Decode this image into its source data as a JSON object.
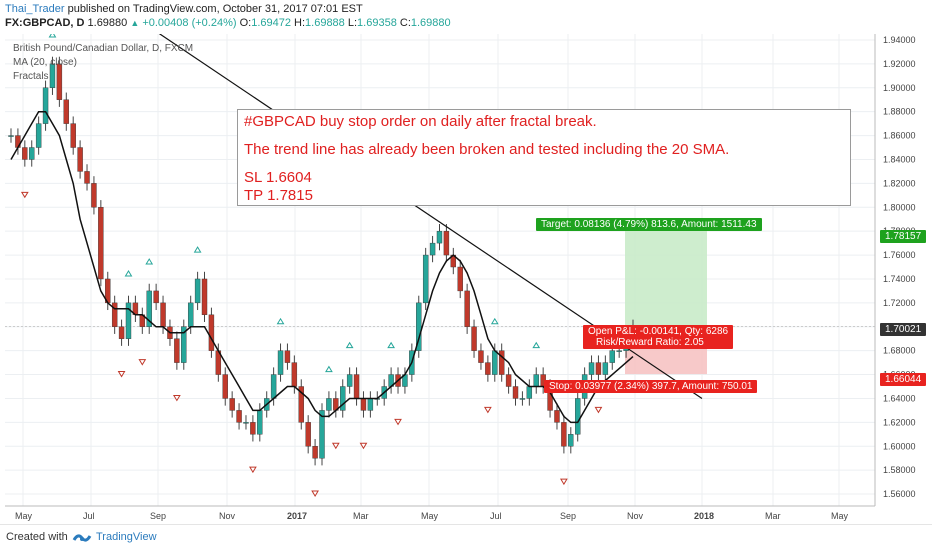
{
  "header": {
    "author": "Thai_Trader",
    "published": "published on TradingView.com, October 31, 2017 07:01 EST",
    "symbol": "FX:GBPCAD, D",
    "last": "1.69880",
    "change": "+0.00408 (+0.24%)",
    "open_label": "O:",
    "open": "1.69472",
    "high_label": "H:",
    "high": "1.69888",
    "low_label": "L:",
    "low": "1.69358",
    "close_label": "C:",
    "close": "1.69880"
  },
  "legend": {
    "title": "British Pound/Canadian Dollar, D, FXCM",
    "ma": "MA (20, close)",
    "fractals": "Fractals"
  },
  "annotation": {
    "line1": "#GBPCAD buy stop order on daily after fractal break.",
    "line2": "The trend line has already been broken and tested including the 20 SMA.",
    "sl": "SL 1.6604",
    "tp": "TP 1.7815"
  },
  "position": {
    "target": "Target: 0.08136 (4.79%) 813.6, Amount: 1511.43",
    "pnl": "Open P&L: -0.00141, Qty: 6286",
    "rr": "Risk/Reward Ratio: 2.05",
    "stop": "Stop: 0.03977 (2.34%) 397.7, Amount: 750.01",
    "target_price": 1.7815,
    "entry_price": 1.7002,
    "stop_price": 1.6604
  },
  "price_tags": {
    "tp": "1.78157",
    "current": "1.70021",
    "sl": "1.66044"
  },
  "colors": {
    "up": "#26a69a",
    "down": "#c0392b",
    "accent": "#e02020",
    "target": "#1ea21e",
    "stop": "#e8231f",
    "grid": "#eceff2"
  },
  "footer": {
    "created": "Created with",
    "brand": "TradingView"
  },
  "chart_data": {
    "type": "candlestick",
    "title": "British Pound/Canadian Dollar, D, FXCM",
    "x_tick_labels": [
      "May",
      "Jul",
      "Sep",
      "Nov",
      "2017",
      "Mar",
      "May",
      "Jul",
      "Sep",
      "Nov",
      "2018",
      "Mar",
      "May"
    ],
    "y_tick_labels": [
      "1.94000",
      "1.92000",
      "1.90000",
      "1.88000",
      "1.86000",
      "1.84000",
      "1.82000",
      "1.80000",
      "1.78000",
      "1.76000",
      "1.74000",
      "1.72000",
      "1.70000",
      "1.68000",
      "1.66000",
      "1.64000",
      "1.62000",
      "1.60000",
      "1.58000",
      "1.56000"
    ],
    "ylim": [
      1.55,
      1.945
    ],
    "series": [
      {
        "name": "GBPCAD",
        "type": "close",
        "values": [
          1.86,
          1.85,
          1.84,
          1.85,
          1.87,
          1.9,
          1.92,
          1.89,
          1.87,
          1.85,
          1.83,
          1.82,
          1.8,
          1.74,
          1.72,
          1.7,
          1.69,
          1.72,
          1.71,
          1.7,
          1.73,
          1.72,
          1.7,
          1.69,
          1.67,
          1.7,
          1.72,
          1.74,
          1.71,
          1.68,
          1.66,
          1.64,
          1.63,
          1.62,
          1.62,
          1.61,
          1.63,
          1.64,
          1.66,
          1.68,
          1.67,
          1.65,
          1.62,
          1.6,
          1.59,
          1.63,
          1.64,
          1.63,
          1.65,
          1.66,
          1.64,
          1.63,
          1.64,
          1.64,
          1.65,
          1.66,
          1.65,
          1.66,
          1.68,
          1.72,
          1.76,
          1.77,
          1.78,
          1.76,
          1.75,
          1.73,
          1.7,
          1.68,
          1.67,
          1.66,
          1.68,
          1.66,
          1.65,
          1.64,
          1.64,
          1.65,
          1.66,
          1.65,
          1.63,
          1.62,
          1.6,
          1.61,
          1.64,
          1.66,
          1.67,
          1.66,
          1.67,
          1.68,
          1.68,
          1.69,
          1.7
        ]
      },
      {
        "name": "MA (20, close)",
        "type": "line",
        "values": [
          1.84,
          1.85,
          1.86,
          1.87,
          1.88,
          1.88,
          1.87,
          1.86,
          1.84,
          1.82,
          1.79,
          1.77,
          1.75,
          1.73,
          1.72,
          1.715,
          1.715,
          1.715,
          1.71,
          1.71,
          1.705,
          1.7,
          1.7,
          1.695,
          1.695,
          1.695,
          1.7,
          1.7,
          1.7,
          1.69,
          1.68,
          1.67,
          1.66,
          1.65,
          1.64,
          1.63,
          1.63,
          1.635,
          1.64,
          1.645,
          1.65,
          1.65,
          1.645,
          1.64,
          1.63,
          1.625,
          1.625,
          1.63,
          1.635,
          1.64,
          1.64,
          1.64,
          1.64,
          1.64,
          1.645,
          1.65,
          1.655,
          1.66,
          1.67,
          1.69,
          1.71,
          1.73,
          1.745,
          1.755,
          1.76,
          1.755,
          1.745,
          1.73,
          1.71,
          1.69,
          1.68,
          1.675,
          1.67,
          1.66,
          1.655,
          1.65,
          1.65,
          1.65,
          1.645,
          1.635,
          1.625,
          1.62,
          1.62,
          1.63,
          1.64,
          1.65,
          1.655,
          1.66,
          1.665,
          1.67,
          1.675
        ]
      }
    ],
    "trendline": {
      "from": [
        0,
        1.95
      ],
      "to": [
        97,
        1.64
      ]
    },
    "markers": {
      "fractal_up": "green triangles above highs",
      "fractal_down": "red triangles below lows"
    }
  }
}
